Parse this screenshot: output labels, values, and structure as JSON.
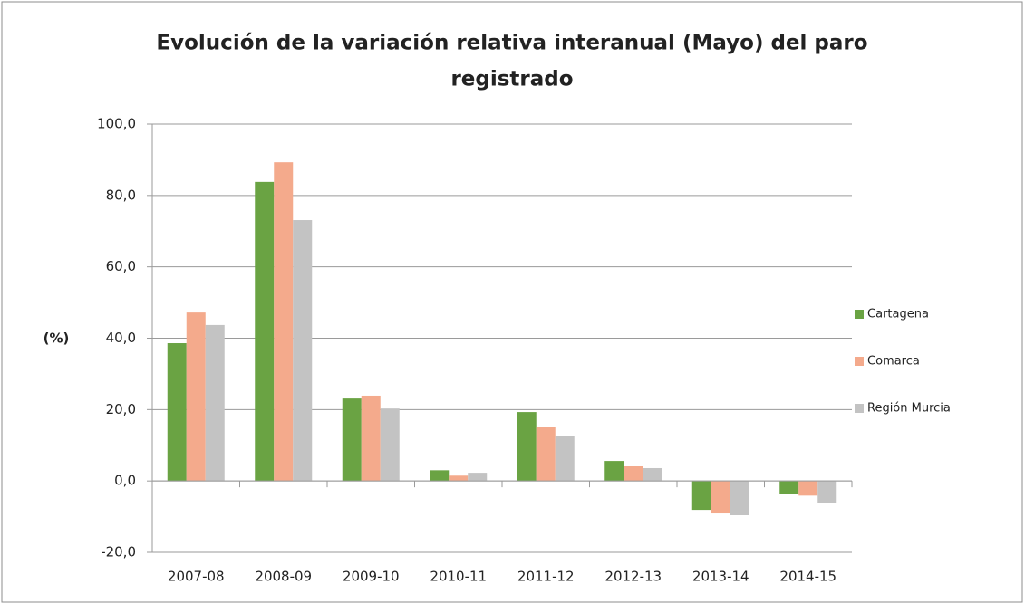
{
  "chart_data": {
    "type": "bar",
    "title": [
      "Evolución de la variación relativa interanual (Mayo) del paro",
      "registrado"
    ],
    "y_label": "(%)",
    "categories": [
      "2007-08",
      "2008-09",
      "2009-10",
      "2010-11",
      "2011-12",
      "2012-13",
      "2013-14",
      "2014-15"
    ],
    "series": [
      {
        "name": "Cartagena",
        "color": "#6aa343",
        "values": [
          38.6,
          83.8,
          23.1,
          3.0,
          19.3,
          5.6,
          -8.1,
          -3.6
        ]
      },
      {
        "name": "Comarca",
        "color": "#f4aa8c",
        "values": [
          47.2,
          89.3,
          23.9,
          1.5,
          15.2,
          4.1,
          -9.1,
          -4.1
        ]
      },
      {
        "name": "Región Murcia",
        "color": "#c3c3c3",
        "values": [
          43.7,
          73.1,
          20.3,
          2.3,
          12.7,
          3.6,
          -9.6,
          -6.1
        ]
      }
    ],
    "ylim": [
      -20,
      100
    ],
    "yticks": [
      {
        "value": -20,
        "label": "-20,0"
      },
      {
        "value": 0,
        "label": "0,0"
      },
      {
        "value": 20,
        "label": "20,0"
      },
      {
        "value": 40,
        "label": "40,0"
      },
      {
        "value": 60,
        "label": "60,0"
      },
      {
        "value": 80,
        "label": "80,0"
      },
      {
        "value": 100,
        "label": "100,0"
      }
    ],
    "grid": true,
    "legend": "right"
  }
}
